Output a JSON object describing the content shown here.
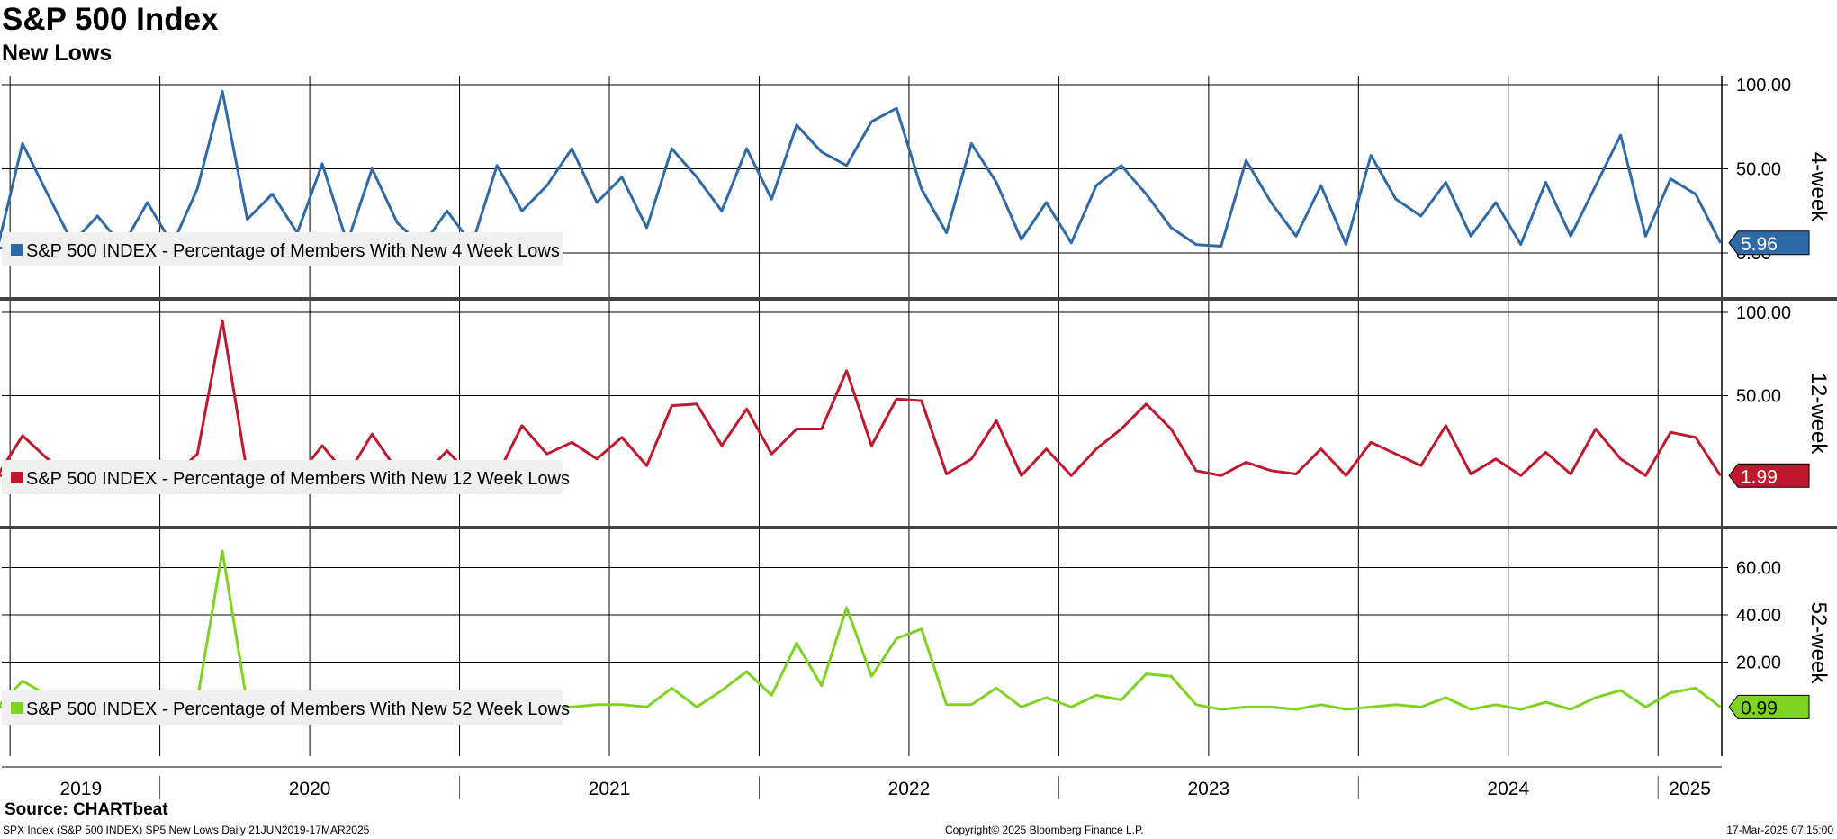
{
  "header": {
    "title": "S&P 500 Index",
    "subtitle": "New Lows"
  },
  "footer": {
    "source": "Source: CHARTbeat",
    "left": "SPX Index (S&P 500 INDEX) SP5 New Lows  Daily 21JUN2019-17MAR2025",
    "middle": "Copyright© 2025 Bloomberg Finance L.P.",
    "right": "17-Mar-2025 07:15:00"
  },
  "colors": {
    "four_week": "#2f6aa8",
    "twelve_week": "#c0182e",
    "fifty_two_week": "#7ed321"
  },
  "chart_data": [
    {
      "type": "line",
      "panel_label": "4-week",
      "ylim": [
        0,
        100
      ],
      "yticks": [
        "100.00",
        "50.00",
        "0.00"
      ],
      "ytick_values": [
        100,
        50,
        0
      ],
      "x_labels": [
        "2019",
        "2020",
        "2021",
        "2022",
        "2023",
        "2024",
        "2025"
      ],
      "last_value_label": "5.96",
      "series": [
        {
          "name": "S&P 500 INDEX - Percentage of Members With New 4 Week Lows",
          "x": [
            "2019-06",
            "2019-07",
            "2019-08",
            "2019-09",
            "2019-10",
            "2019-11",
            "2019-12",
            "2020-01",
            "2020-02",
            "2020-03",
            "2020-04",
            "2020-05",
            "2020-06",
            "2020-07",
            "2020-08",
            "2020-09",
            "2020-10",
            "2020-11",
            "2020-12",
            "2021-01",
            "2021-02",
            "2021-03",
            "2021-04",
            "2021-05",
            "2021-06",
            "2021-07",
            "2021-08",
            "2021-09",
            "2021-10",
            "2021-11",
            "2021-12",
            "2022-01",
            "2022-02",
            "2022-03",
            "2022-04",
            "2022-05",
            "2022-06",
            "2022-07",
            "2022-08",
            "2022-09",
            "2022-10",
            "2022-11",
            "2022-12",
            "2023-01",
            "2023-02",
            "2023-03",
            "2023-04",
            "2023-05",
            "2023-06",
            "2023-07",
            "2023-08",
            "2023-09",
            "2023-10",
            "2023-11",
            "2023-12",
            "2024-01",
            "2024-02",
            "2024-03",
            "2024-04",
            "2024-05",
            "2024-06",
            "2024-07",
            "2024-08",
            "2024-09",
            "2024-10",
            "2024-11",
            "2024-12",
            "2025-01",
            "2025-02",
            "2025-03"
          ],
          "values": [
            3,
            65,
            35,
            6,
            22,
            4,
            30,
            5,
            38,
            96,
            20,
            35,
            12,
            53,
            6,
            50,
            18,
            4,
            25,
            5,
            52,
            25,
            40,
            62,
            30,
            45,
            15,
            62,
            45,
            25,
            62,
            32,
            76,
            60,
            52,
            78,
            86,
            38,
            12,
            65,
            42,
            8,
            30,
            6,
            40,
            52,
            35,
            15,
            5,
            4,
            55,
            30,
            10,
            40,
            5,
            58,
            32,
            22,
            42,
            10,
            30,
            5,
            42,
            10,
            40,
            70,
            10,
            44,
            35,
            6
          ]
        }
      ]
    },
    {
      "type": "line",
      "panel_label": "12-week",
      "ylim": [
        0,
        100
      ],
      "yticks": [
        "100.00",
        "50.00"
      ],
      "ytick_values": [
        100,
        50
      ],
      "last_value_label": "1.99",
      "series": [
        {
          "name": "S&P 500 INDEX - Percentage of Members With New 12 Week Lows",
          "x": [
            "2019-06",
            "2019-07",
            "2019-08",
            "2019-09",
            "2019-10",
            "2019-11",
            "2019-12",
            "2020-01",
            "2020-02",
            "2020-03",
            "2020-04",
            "2020-05",
            "2020-06",
            "2020-07",
            "2020-08",
            "2020-09",
            "2020-10",
            "2020-11",
            "2020-12",
            "2021-01",
            "2021-02",
            "2021-03",
            "2021-04",
            "2021-05",
            "2021-06",
            "2021-07",
            "2021-08",
            "2021-09",
            "2021-10",
            "2021-11",
            "2021-12",
            "2022-01",
            "2022-02",
            "2022-03",
            "2022-04",
            "2022-05",
            "2022-06",
            "2022-07",
            "2022-08",
            "2022-09",
            "2022-10",
            "2022-11",
            "2022-12",
            "2023-01",
            "2023-02",
            "2023-03",
            "2023-04",
            "2023-05",
            "2023-06",
            "2023-07",
            "2023-08",
            "2023-09",
            "2023-10",
            "2023-11",
            "2023-12",
            "2024-01",
            "2024-02",
            "2024-03",
            "2024-04",
            "2024-05",
            "2024-06",
            "2024-07",
            "2024-08",
            "2024-09",
            "2024-10",
            "2024-11",
            "2024-12",
            "2025-01",
            "2025-02",
            "2025-03"
          ],
          "values": [
            2,
            26,
            12,
            2,
            8,
            1,
            6,
            1,
            15,
            95,
            3,
            2,
            1,
            20,
            2,
            27,
            5,
            1,
            17,
            1,
            2,
            32,
            15,
            22,
            12,
            25,
            8,
            44,
            45,
            20,
            42,
            15,
            30,
            30,
            65,
            20,
            48,
            47,
            3,
            12,
            35,
            2,
            18,
            2,
            18,
            30,
            45,
            30,
            5,
            2,
            10,
            5,
            3,
            18,
            2,
            22,
            15,
            8,
            32,
            3,
            12,
            2,
            16,
            3,
            30,
            12,
            2,
            28,
            25,
            2
          ]
        }
      ]
    },
    {
      "type": "line",
      "panel_label": "52-week",
      "ylim": [
        0,
        80
      ],
      "yticks": [
        "60.00",
        "40.00",
        "20.00"
      ],
      "ytick_values": [
        60,
        40,
        20
      ],
      "last_value_label": "0.99",
      "series": [
        {
          "name": "S&P 500 INDEX - Percentage of Members With New 52 Week Lows",
          "x": [
            "2019-06",
            "2019-07",
            "2019-08",
            "2019-09",
            "2019-10",
            "2019-11",
            "2019-12",
            "2020-01",
            "2020-02",
            "2020-03",
            "2020-04",
            "2020-05",
            "2020-06",
            "2020-07",
            "2020-08",
            "2020-09",
            "2020-10",
            "2020-11",
            "2020-12",
            "2021-01",
            "2021-02",
            "2021-03",
            "2021-04",
            "2021-05",
            "2021-06",
            "2021-07",
            "2021-08",
            "2021-09",
            "2021-10",
            "2021-11",
            "2021-12",
            "2022-01",
            "2022-02",
            "2022-03",
            "2022-04",
            "2022-05",
            "2022-06",
            "2022-07",
            "2022-08",
            "2022-09",
            "2022-10",
            "2022-11",
            "2022-12",
            "2023-01",
            "2023-02",
            "2023-03",
            "2023-04",
            "2023-05",
            "2023-06",
            "2023-07",
            "2023-08",
            "2023-09",
            "2023-10",
            "2023-11",
            "2023-12",
            "2024-01",
            "2024-02",
            "2024-03",
            "2024-04",
            "2024-05",
            "2024-06",
            "2024-07",
            "2024-08",
            "2024-09",
            "2024-10",
            "2024-11",
            "2024-12",
            "2025-01",
            "2025-02",
            "2025-03"
          ],
          "values": [
            1,
            12,
            6,
            0,
            1,
            0,
            1,
            0,
            4,
            67,
            2,
            0,
            0,
            0,
            0,
            2,
            0,
            0,
            0,
            0,
            0,
            0,
            1,
            1,
            2,
            2,
            1,
            9,
            1,
            8,
            16,
            6,
            28,
            10,
            43,
            14,
            30,
            34,
            2,
            2,
            9,
            1,
            5,
            1,
            6,
            4,
            15,
            14,
            2,
            0,
            1,
            1,
            0,
            2,
            0,
            1,
            2,
            1,
            5,
            0,
            2,
            0,
            3,
            0,
            5,
            8,
            1,
            7,
            9,
            1
          ]
        }
      ]
    }
  ]
}
